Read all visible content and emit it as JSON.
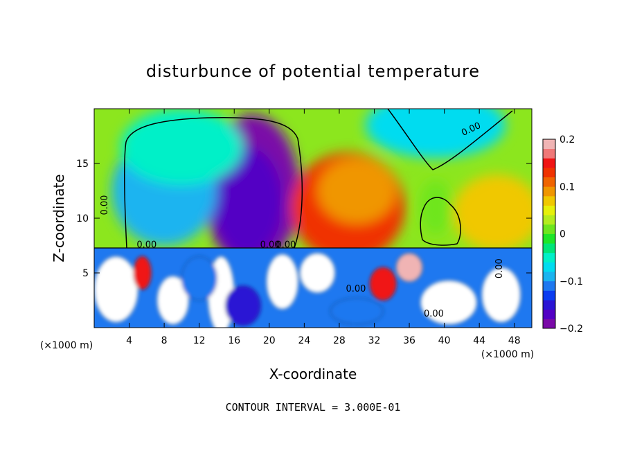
{
  "chart_data": {
    "type": "heatmap",
    "title": "disturbunce of potential temperature",
    "xlabel": "X-coordinate",
    "ylabel": "Z-coordinate",
    "x_unit_left": "(×1000 m)",
    "x_unit_right": "(×1000 m)",
    "footer": "CONTOUR INTERVAL = 3.000E-01",
    "xlim": [
      0,
      50
    ],
    "ylim": [
      0,
      20
    ],
    "x_ticks": [
      4,
      8,
      12,
      16,
      20,
      24,
      28,
      32,
      36,
      40,
      44,
      48
    ],
    "y_ticks": [
      5,
      10,
      15
    ],
    "colorbar": {
      "range": [
        -0.2,
        0.2
      ],
      "labels": [
        "0.2",
        "0.1",
        "0",
        "−0.1",
        "−0.2"
      ],
      "label_values": [
        0.2,
        0.1,
        0,
        -0.1,
        -0.2
      ],
      "colors": [
        "#7a0aa8",
        "#5200c4",
        "#2a14d4",
        "#0a3cf0",
        "#1e78f0",
        "#1ab4f0",
        "#00dcf0",
        "#00f0c8",
        "#00e678",
        "#1ee628",
        "#6ee61e",
        "#b4ec1e",
        "#e6f00a",
        "#f0c800",
        "#f09600",
        "#f06400",
        "#f03200",
        "#f01414",
        "#f07878",
        "#f0b4b4"
      ]
    },
    "contour_labels": [
      {
        "text": "0.00",
        "x": 1.5,
        "z": 11.2,
        "rotate": -90
      },
      {
        "text": "0.00",
        "x": 43.2,
        "z": 17.9,
        "rotate": -25
      },
      {
        "text": "0.00",
        "x": 6.0,
        "z": 7.3,
        "rotate": 0
      },
      {
        "text": "0.00",
        "x": 20.1,
        "z": 7.3,
        "rotate": 0
      },
      {
        "text": "0.00",
        "x": 21.9,
        "z": 7.3,
        "rotate": 0
      },
      {
        "text": "0.00",
        "x": 29.9,
        "z": 3.3,
        "rotate": 0
      },
      {
        "text": "0.00",
        "x": 38.8,
        "z": 1.0,
        "rotate": 0
      },
      {
        "text": "0.00",
        "x": 46.6,
        "z": 5.4,
        "rotate": -90
      }
    ],
    "upper_features": [
      {
        "x": 18,
        "z": 12.5,
        "rx": 5.5,
        "rz": 7.0,
        "value": -0.19
      },
      {
        "x": 17.5,
        "z": 11.5,
        "rx": 4.0,
        "rz": 5.0,
        "value": -0.17
      },
      {
        "x": 8,
        "z": 12.5,
        "rx": 6.0,
        "rz": 5.0,
        "value": -0.09
      },
      {
        "x": 10,
        "z": 16.5,
        "rx": 7.0,
        "rz": 3.5,
        "value": -0.05
      },
      {
        "x": 29,
        "z": 11.0,
        "rx": 6.5,
        "rz": 5.0,
        "value": 0.13
      },
      {
        "x": 30,
        "z": 12.5,
        "rx": 4.5,
        "rz": 3.0,
        "value": 0.09
      },
      {
        "x": 39,
        "z": 18.5,
        "rx": 8.0,
        "rz": 3.0,
        "value": -0.08
      },
      {
        "x": 46,
        "z": 10.5,
        "rx": 5.0,
        "rz": 3.5,
        "value": 0.06
      },
      {
        "x": 39,
        "z": 11.0,
        "rx": 1.8,
        "rz": 2.5,
        "value": 0.0
      }
    ],
    "lower_features": [
      {
        "x": 2.5,
        "z": 3.5,
        "rx": 2.5,
        "rz": 3.0,
        "value": 0.3
      },
      {
        "x": 9,
        "z": 2.5,
        "rx": 1.8,
        "rz": 2.2,
        "value": 0.3
      },
      {
        "x": 14.5,
        "z": 3.0,
        "rx": 1.5,
        "rz": 3.5,
        "value": 0.3
      },
      {
        "x": 21.5,
        "z": 4.2,
        "rx": 1.8,
        "rz": 2.5,
        "value": 0.3
      },
      {
        "x": 25.5,
        "z": 5.0,
        "rx": 2.0,
        "rz": 1.8,
        "value": 0.3
      },
      {
        "x": 40.5,
        "z": 2.3,
        "rx": 3.2,
        "rz": 2.0,
        "value": 0.3
      },
      {
        "x": 46.5,
        "z": 3.0,
        "rx": 2.2,
        "rz": 2.5,
        "value": 0.3
      },
      {
        "x": 12,
        "z": 4.5,
        "rx": 2.0,
        "rz": 2.0,
        "value": -0.12
      },
      {
        "x": 17,
        "z": 2.0,
        "rx": 2.0,
        "rz": 1.8,
        "value": -0.15
      },
      {
        "x": 30,
        "z": 1.5,
        "rx": 3.0,
        "rz": 1.2,
        "value": -0.12
      },
      {
        "x": 33,
        "z": 4.0,
        "rx": 1.5,
        "rz": 1.5,
        "value": 0.14
      },
      {
        "x": 5.5,
        "z": 5.0,
        "rx": 1.0,
        "rz": 1.5,
        "value": 0.15
      },
      {
        "x": 36,
        "z": 5.5,
        "rx": 1.5,
        "rz": 1.3,
        "value": 0.2
      }
    ]
  }
}
